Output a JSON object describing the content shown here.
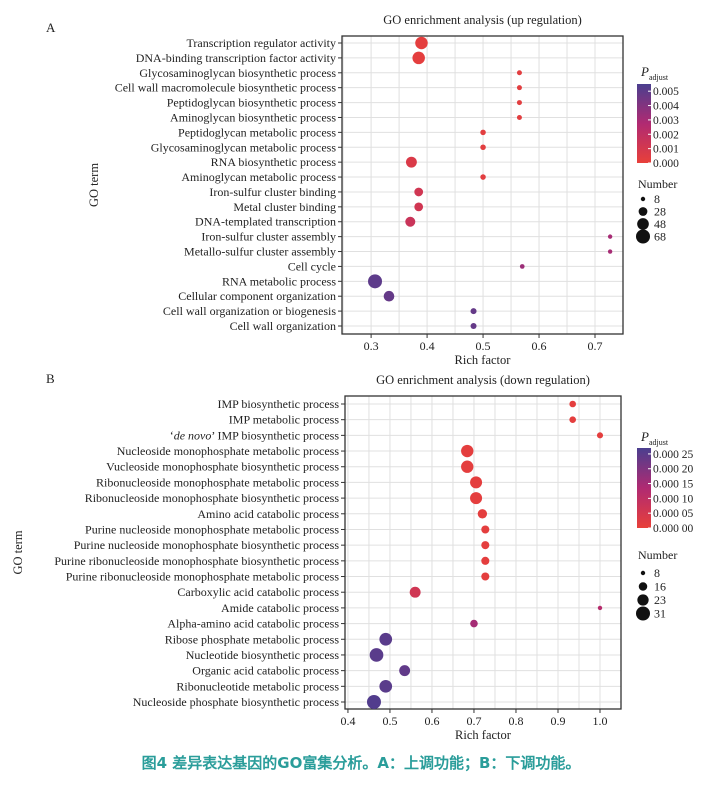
{
  "caption": "图4  差异表达基因的GO富集分析。A：上调功能；B：下调功能。",
  "chart_data": [
    {
      "type": "scatter",
      "panel_label": "A",
      "title": "GO enrichment analysis (up regulation)",
      "xlabel": "Rich factor",
      "ylabel": "GO term",
      "xlim": [
        0.248,
        0.75
      ],
      "xticks": [
        0.3,
        0.4,
        0.5,
        0.6,
        0.7
      ],
      "xtick_labels": [
        "0.3",
        "0.4",
        "0.5",
        "0.6",
        "0.7"
      ],
      "grid": true,
      "legend_position": "right",
      "color_legend": {
        "title": "P",
        "title_sub": "adjust",
        "range": [
          0.0,
          0.0055
        ],
        "ticks": [
          0.005,
          0.004,
          0.003,
          0.002,
          0.001,
          0.0
        ],
        "tick_labels": [
          "0.005",
          "0.004",
          "0.003",
          "0.002",
          "0.001",
          "0.000"
        ],
        "low_color": "#e8403a",
        "mid_color": "#b02a72",
        "high_color": "#4b3f8f"
      },
      "size_legend": {
        "title": "Number",
        "values": [
          8,
          28,
          48,
          68
        ],
        "labels": [
          "8",
          "28",
          "48",
          "68"
        ]
      },
      "size_range": [
        8,
        68
      ],
      "terms": [
        {
          "term": "Transcription regulator activity",
          "rich_factor": 0.39,
          "p_adjust": 0.0002,
          "count": 55
        },
        {
          "term": "DNA-binding transcription factor activity",
          "rich_factor": 0.385,
          "p_adjust": 0.0002,
          "count": 55
        },
        {
          "term": "Glycosaminoglycan biosynthetic process",
          "rich_factor": 0.565,
          "p_adjust": 0.0003,
          "count": 10
        },
        {
          "term": "Cell wall macromolecule biosynthetic process",
          "rich_factor": 0.565,
          "p_adjust": 0.0003,
          "count": 10
        },
        {
          "term": "Peptidoglycan biosynthetic process",
          "rich_factor": 0.565,
          "p_adjust": 0.0003,
          "count": 10
        },
        {
          "term": "Aminoglycan biosynthetic process",
          "rich_factor": 0.565,
          "p_adjust": 0.0003,
          "count": 10
        },
        {
          "term": "Peptidoglycan metabolic process",
          "rich_factor": 0.5,
          "p_adjust": 0.0003,
          "count": 12
        },
        {
          "term": "Glycosaminoglycan metabolic process",
          "rich_factor": 0.5,
          "p_adjust": 0.0003,
          "count": 12
        },
        {
          "term": "RNA biosynthetic process",
          "rich_factor": 0.372,
          "p_adjust": 0.0007,
          "count": 42
        },
        {
          "term": "Aminoglycan metabolic process",
          "rich_factor": 0.5,
          "p_adjust": 0.0003,
          "count": 12
        },
        {
          "term": "Iron-sulfur cluster binding",
          "rich_factor": 0.385,
          "p_adjust": 0.0012,
          "count": 28
        },
        {
          "term": "Metal cluster binding",
          "rich_factor": 0.385,
          "p_adjust": 0.0012,
          "count": 28
        },
        {
          "term": "DNA-templated transcription",
          "rich_factor": 0.37,
          "p_adjust": 0.0015,
          "count": 36
        },
        {
          "term": "Iron-sulfur cluster assembly",
          "rich_factor": 0.727,
          "p_adjust": 0.003,
          "count": 8
        },
        {
          "term": "Metallo-sulfur cluster assembly",
          "rich_factor": 0.727,
          "p_adjust": 0.003,
          "count": 8
        },
        {
          "term": "Cell cycle",
          "rich_factor": 0.57,
          "p_adjust": 0.0033,
          "count": 9
        },
        {
          "term": "RNA metabolic process",
          "rich_factor": 0.307,
          "p_adjust": 0.005,
          "count": 68
        },
        {
          "term": "Cellular component organization",
          "rich_factor": 0.332,
          "p_adjust": 0.0048,
          "count": 40
        },
        {
          "term": "Cell wall organization or biogenesis",
          "rich_factor": 0.483,
          "p_adjust": 0.0048,
          "count": 14
        },
        {
          "term": "Cell wall organization",
          "rich_factor": 0.483,
          "p_adjust": 0.0048,
          "count": 14
        }
      ]
    },
    {
      "type": "scatter",
      "panel_label": "B",
      "title": "GO enrichment analysis (down regulation)",
      "xlabel": "Rich factor",
      "ylabel": "GO term",
      "xlim": [
        0.393,
        1.05
      ],
      "xticks": [
        0.4,
        0.5,
        0.6,
        0.7,
        0.8,
        0.9,
        1.0
      ],
      "xtick_labels": [
        "0.4",
        "0.5",
        "0.6",
        "0.7",
        "0.8",
        "0.9",
        "1.0"
      ],
      "grid": true,
      "legend_position": "right",
      "color_legend": {
        "title": "P",
        "title_sub": "adjust",
        "range": [
          0.0,
          0.00027
        ],
        "ticks": [
          0.00025,
          0.0002,
          0.00015,
          0.0001,
          5e-05,
          0.0
        ],
        "tick_labels": [
          "0.000 25",
          "0.000 20",
          "0.000 15",
          "0.000 10",
          "0.000 05",
          "0.000 00"
        ],
        "low_color": "#e8403a",
        "mid_color": "#b02a72",
        "high_color": "#4b3f8f"
      },
      "size_legend": {
        "title": "Number",
        "values": [
          8,
          16,
          23,
          31
        ],
        "labels": [
          "8",
          "16",
          "23",
          "31"
        ]
      },
      "size_range": [
        8,
        31
      ],
      "terms": [
        {
          "term": "IMP biosynthetic process",
          "term_italic_prefix": "",
          "rich_factor": 0.935,
          "p_adjust": 1e-05,
          "count": 12
        },
        {
          "term": "IMP metabolic process",
          "rich_factor": 0.935,
          "p_adjust": 1e-05,
          "count": 12
        },
        {
          "term": "'de novo' IMP biosynthetic process",
          "rich_factor": 1.0,
          "p_adjust": 1e-05,
          "count": 11
        },
        {
          "term": "Nucleoside monophosphate metabolic process",
          "rich_factor": 0.684,
          "p_adjust": 1e-05,
          "count": 26
        },
        {
          "term": "Vucleoside monophosphate biosynthetic process",
          "rich_factor": 0.684,
          "p_adjust": 1e-05,
          "count": 26
        },
        {
          "term": "Ribonucleoside monophosphate metabolic process",
          "rich_factor": 0.705,
          "p_adjust": 1e-05,
          "count": 25
        },
        {
          "term": "Ribonucleoside monophosphate biosynthetic process",
          "rich_factor": 0.705,
          "p_adjust": 1e-05,
          "count": 25
        },
        {
          "term": "Amino acid catabolic process",
          "rich_factor": 0.72,
          "p_adjust": 1e-05,
          "count": 18
        },
        {
          "term": "Purine nucleoside monophosphate metabolic process",
          "rich_factor": 0.727,
          "p_adjust": 1e-05,
          "count": 15
        },
        {
          "term": "Purine nucleoside monophosphate biosynthetic process",
          "rich_factor": 0.727,
          "p_adjust": 1e-05,
          "count": 15
        },
        {
          "term": "Purine ribonucleoside monophosphate biosynthetic process",
          "rich_factor": 0.727,
          "p_adjust": 1e-05,
          "count": 15
        },
        {
          "term": "Purine ribonucleoside monophosphate metabolic process",
          "rich_factor": 0.727,
          "p_adjust": 1e-05,
          "count": 15
        },
        {
          "term": "Carboxylic acid catabolic process",
          "rich_factor": 0.56,
          "p_adjust": 6e-05,
          "count": 22
        },
        {
          "term": "Amide catabolic process",
          "rich_factor": 1.0,
          "p_adjust": 0.00012,
          "count": 8
        },
        {
          "term": "Alpha-amino acid catabolic process",
          "rich_factor": 0.7,
          "p_adjust": 0.00015,
          "count": 14
        },
        {
          "term": "Ribose phosphate metabolic process",
          "rich_factor": 0.49,
          "p_adjust": 0.00025,
          "count": 27
        },
        {
          "term": "Nucleotide biosynthetic process",
          "rich_factor": 0.468,
          "p_adjust": 0.00025,
          "count": 30
        },
        {
          "term": "Organic acid catabolic process",
          "rich_factor": 0.535,
          "p_adjust": 0.00024,
          "count": 22
        },
        {
          "term": "Ribonucleotide metabolic process",
          "rich_factor": 0.49,
          "p_adjust": 0.00025,
          "count": 27
        },
        {
          "term": "Nucleoside phosphate biosynthetic process",
          "rich_factor": 0.462,
          "p_adjust": 0.00026,
          "count": 31
        }
      ]
    }
  ]
}
